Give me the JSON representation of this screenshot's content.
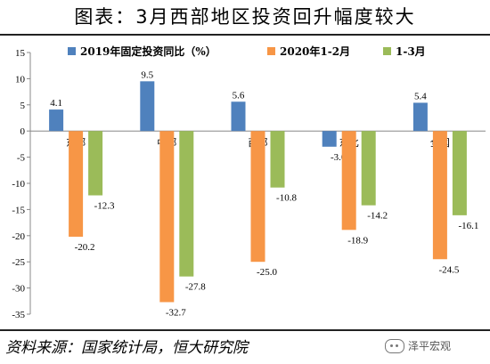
{
  "title": "图表：3月西部地区投资回升幅度较大",
  "source": "资料来源：国家统计局，恒大研究院",
  "watermark": "泽平宏观",
  "chart_data": {
    "type": "bar",
    "categories": [
      "东部",
      "中部",
      "西部",
      "东北",
      "全国"
    ],
    "series": [
      {
        "name": "2019年固定投资同比（%）",
        "color": "#4f81bd",
        "values": [
          4.1,
          9.5,
          5.6,
          -3.0,
          5.4
        ],
        "labels": [
          "4.1",
          "9.5",
          "5.6",
          "-3.0",
          "5.4"
        ]
      },
      {
        "name": "2020年1-2月",
        "color": "#f79646",
        "values": [
          -20.2,
          -32.7,
          -25.0,
          -18.9,
          -24.5
        ],
        "labels": [
          "-20.2",
          "-32.7",
          "-25.0",
          "-18.9",
          "-24.5"
        ]
      },
      {
        "name": "1-3月",
        "color": "#9bbb59",
        "values": [
          -12.3,
          -27.8,
          -10.8,
          -14.2,
          -16.1
        ],
        "labels": [
          "-12.3",
          "-27.8",
          "-10.8",
          "-14.2",
          "-16.1"
        ]
      }
    ],
    "ylim": [
      -35,
      15
    ],
    "yticks": [
      15,
      10,
      5,
      0,
      -5,
      -10,
      -15,
      -20,
      -25,
      -30,
      -35
    ],
    "grid": false,
    "legend": "top"
  }
}
